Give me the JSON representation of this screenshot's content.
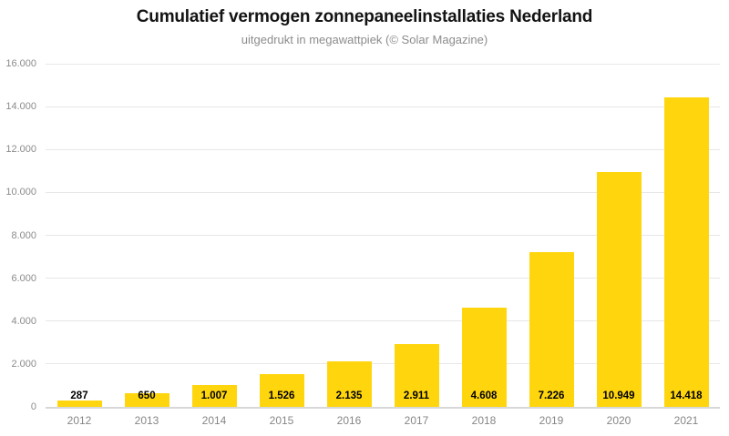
{
  "chart": {
    "title": "Cumulatief vermogen zonnepaneelinstallaties Nederland",
    "subtitle": "uitgedrukt in megawattpiek (© Solar Magazine)"
  },
  "chart_data": {
    "type": "bar",
    "title": "Cumulatief vermogen zonnepaneelinstallaties Nederland",
    "subtitle": "uitgedrukt in megawattpiek (© Solar Magazine)",
    "categories": [
      "2012",
      "2013",
      "2014",
      "2015",
      "2016",
      "2017",
      "2018",
      "2019",
      "2020",
      "2021"
    ],
    "values": [
      287,
      650,
      1007,
      1526,
      2135,
      2911,
      4608,
      7226,
      10949,
      14418
    ],
    "value_labels": [
      "287",
      "650",
      "1.007",
      "1.526",
      "2.135",
      "2.911",
      "4.608",
      "7.226",
      "10.949",
      "14.418"
    ],
    "xlabel": "",
    "ylabel": "",
    "ylim": [
      0,
      16000
    ],
    "y_ticks": [
      0,
      2000,
      4000,
      6000,
      8000,
      10000,
      12000,
      14000,
      16000
    ],
    "y_tick_labels": [
      "0",
      "2.000",
      "4.000",
      "6.000",
      "8.000",
      "10.000",
      "12.000",
      "14.000",
      "16.000"
    ],
    "grid": true,
    "legend_position": "none",
    "bar_color": "#ffd60e",
    "label_color": "#000000"
  }
}
